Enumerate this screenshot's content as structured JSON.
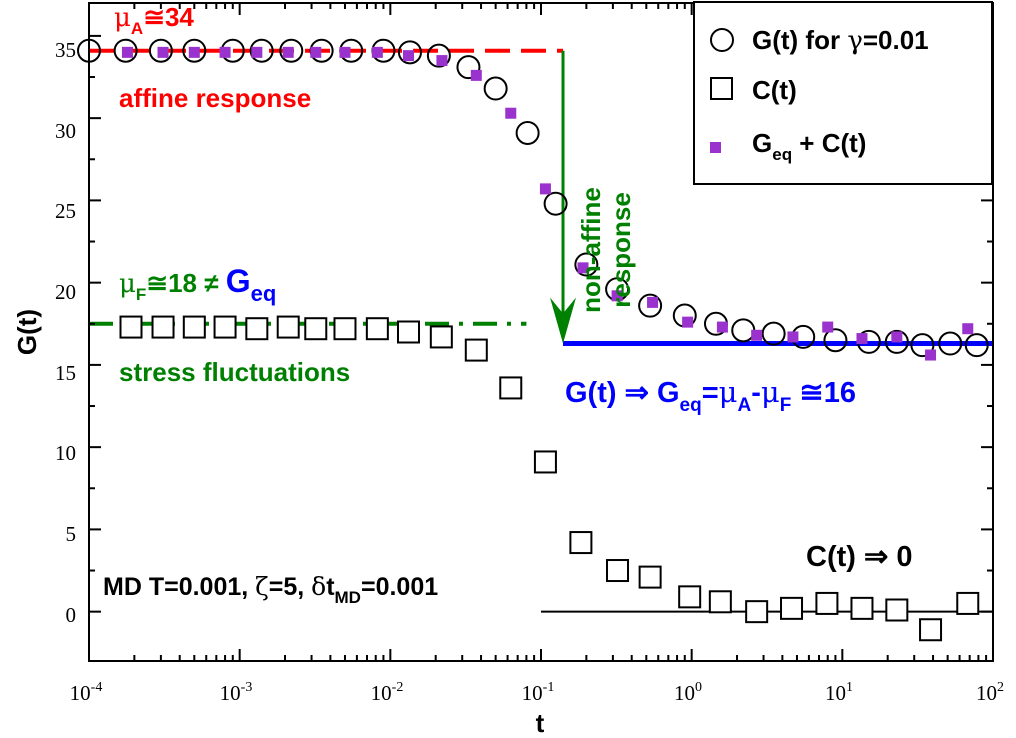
{
  "chart_data": {
    "type": "scatter",
    "xscale": "log",
    "xlim": [
      0.0001,
      100
    ],
    "ylim": [
      -3,
      37
    ],
    "xlabel": "t",
    "ylabel": "G(t)",
    "x_ticks": [
      {
        "value": 0.0001,
        "base": "10",
        "exp": "-4"
      },
      {
        "value": 0.001,
        "base": "10",
        "exp": "-3"
      },
      {
        "value": 0.01,
        "base": "10",
        "exp": "-2"
      },
      {
        "value": 0.1,
        "base": "10",
        "exp": "-1"
      },
      {
        "value": 1,
        "base": "10",
        "exp": "0"
      },
      {
        "value": 10,
        "base": "10",
        "exp": "1"
      },
      {
        "value": 100,
        "base": "10",
        "exp": "2"
      }
    ],
    "y_ticks": [
      {
        "value": 0,
        "label": "0"
      },
      {
        "value": 5,
        "label": "5"
      },
      {
        "value": 10,
        "label": "10"
      },
      {
        "value": 15,
        "label": "15"
      },
      {
        "value": 20,
        "label": "20"
      },
      {
        "value": 25,
        "label": "25"
      },
      {
        "value": 30,
        "label": "30"
      },
      {
        "value": 35,
        "label": "35"
      }
    ],
    "series": [
      {
        "name": "G(t) for γ=0.01",
        "marker": "open-circle",
        "color": "#000000",
        "points": [
          [
            0.0001,
            34.1
          ],
          [
            0.000175,
            34.1
          ],
          [
            0.0003,
            34.1
          ],
          [
            0.0005,
            34.1
          ],
          [
            0.0009,
            34.1
          ],
          [
            0.0014,
            34.1
          ],
          [
            0.0022,
            34.1
          ],
          [
            0.0035,
            34.1
          ],
          [
            0.0055,
            34.1
          ],
          [
            0.009,
            34.1
          ],
          [
            0.0135,
            34.0
          ],
          [
            0.021,
            33.8
          ],
          [
            0.033,
            33.1
          ],
          [
            0.05,
            31.8
          ],
          [
            0.0815,
            29.1
          ],
          [
            0.125,
            24.8
          ],
          [
            0.2,
            21.1
          ],
          [
            0.32,
            19.6
          ],
          [
            0.53,
            18.6
          ],
          [
            0.9,
            18.0
          ],
          [
            1.45,
            17.5
          ],
          [
            2.2,
            17.1
          ],
          [
            3.5,
            16.9
          ],
          [
            5.5,
            16.7
          ],
          [
            9.0,
            16.5
          ],
          [
            15.0,
            16.4
          ],
          [
            23.0,
            16.4
          ],
          [
            34.0,
            16.2
          ],
          [
            52.0,
            16.3
          ],
          [
            78.0,
            16.2
          ]
        ]
      },
      {
        "name": "C(t)",
        "marker": "open-square",
        "color": "#000000",
        "points": [
          [
            0.00019,
            17.3
          ],
          [
            0.00031,
            17.3
          ],
          [
            0.0005,
            17.3
          ],
          [
            0.0008,
            17.3
          ],
          [
            0.0013,
            17.2
          ],
          [
            0.0021,
            17.3
          ],
          [
            0.0032,
            17.2
          ],
          [
            0.005,
            17.2
          ],
          [
            0.0082,
            17.2
          ],
          [
            0.0132,
            17.0
          ],
          [
            0.0218,
            16.7
          ],
          [
            0.0372,
            15.9
          ],
          [
            0.063,
            13.6
          ],
          [
            0.107,
            9.1
          ],
          [
            0.184,
            4.2
          ],
          [
            0.322,
            2.5
          ],
          [
            0.53,
            2.1
          ],
          [
            0.97,
            0.9
          ],
          [
            1.55,
            0.6
          ],
          [
            2.7,
            0.0
          ],
          [
            4.6,
            0.2
          ],
          [
            7.9,
            0.5
          ],
          [
            13.5,
            0.2
          ],
          [
            23.0,
            0.1
          ],
          [
            38.5,
            -1.1
          ],
          [
            68.0,
            0.5
          ]
        ]
      },
      {
        "name": "Geq + C(t)",
        "marker": "filled-square",
        "color": "#9a32cd",
        "points": [
          [
            0.00018,
            34.0
          ],
          [
            0.00031,
            34.0
          ],
          [
            0.0005,
            34.0
          ],
          [
            0.0008,
            34.0
          ],
          [
            0.0013,
            34.0
          ],
          [
            0.0021,
            34.0
          ],
          [
            0.0032,
            34.0
          ],
          [
            0.005,
            34.0
          ],
          [
            0.0082,
            34.0
          ],
          [
            0.0132,
            33.8
          ],
          [
            0.022,
            33.5
          ],
          [
            0.0372,
            32.6
          ],
          [
            0.063,
            30.3
          ],
          [
            0.107,
            25.7
          ],
          [
            0.19,
            20.9
          ],
          [
            0.32,
            19.2
          ],
          [
            0.55,
            18.8
          ],
          [
            0.94,
            17.6
          ],
          [
            1.6,
            17.3
          ],
          [
            2.7,
            16.8
          ],
          [
            4.7,
            16.7
          ],
          [
            8.0,
            17.3
          ],
          [
            13.5,
            16.6
          ],
          [
            23.0,
            16.7
          ],
          [
            38.5,
            15.6
          ],
          [
            68.0,
            17.2
          ]
        ]
      }
    ],
    "reference_lines": [
      {
        "name": "affine-level",
        "style": "dashed",
        "color": "#ff0000",
        "y": 34.1,
        "x_from": 0.0001,
        "x_to": 0.14
      },
      {
        "name": "stress-fluctuation-level",
        "style": "dash-dot",
        "color": "#008000",
        "y": 17.5,
        "x_from": 0.0001,
        "x_to": 0.08
      },
      {
        "name": "geq-level",
        "style": "solid",
        "color": "#0000ff",
        "y": 16.3,
        "x_from": 0.14,
        "x_to": 100
      },
      {
        "name": "zero-level",
        "style": "solid",
        "color": "#000000",
        "y": 0,
        "x_from": 0.1,
        "x_to": 100
      }
    ],
    "arrow": {
      "color": "#008000",
      "x": 0.14,
      "y_from": 34.1,
      "y_to": 16.3
    },
    "colors": {
      "affine": "#ff0000",
      "fluct": "#008000",
      "geq": "#0000ff",
      "purple": "#9a32cd"
    }
  },
  "legend": {
    "g_text": "G(t) for ",
    "g_gamma": "γ",
    "g_value": "=0.01",
    "c_text": "C(t)",
    "geq_base": "G",
    "geq_sub": "eq",
    "geq_rest": " + C(t)"
  },
  "annotations": {
    "mu_a": {
      "mu": "μ",
      "sub": "A",
      "rest": "≅34"
    },
    "affine": "affine response",
    "nonaffine_1": "non-affine",
    "nonaffine_2": "response",
    "mu_f": {
      "mu": "μ",
      "sub": "F",
      "rest": "≅18 ≠ ",
      "g": "G",
      "gsub": "eq"
    },
    "stress": "stress fluctuations",
    "geq_limit": {
      "a": "G(t) ⇒ G",
      "a_sub": "eq",
      "b": "=",
      "mu1": "μ",
      "mu1_sub": "A",
      "minus": "-",
      "mu2": "μ",
      "mu2_sub": "F",
      "end": " ≅16"
    },
    "ct_zero": "C(t) ⇒ 0",
    "md": {
      "a": "MD T=0.001, ",
      "zeta": "ζ",
      "b": "=5, ",
      "delta": "δ",
      "c": "t",
      "sub": "MD",
      "d": "=0.001"
    }
  }
}
